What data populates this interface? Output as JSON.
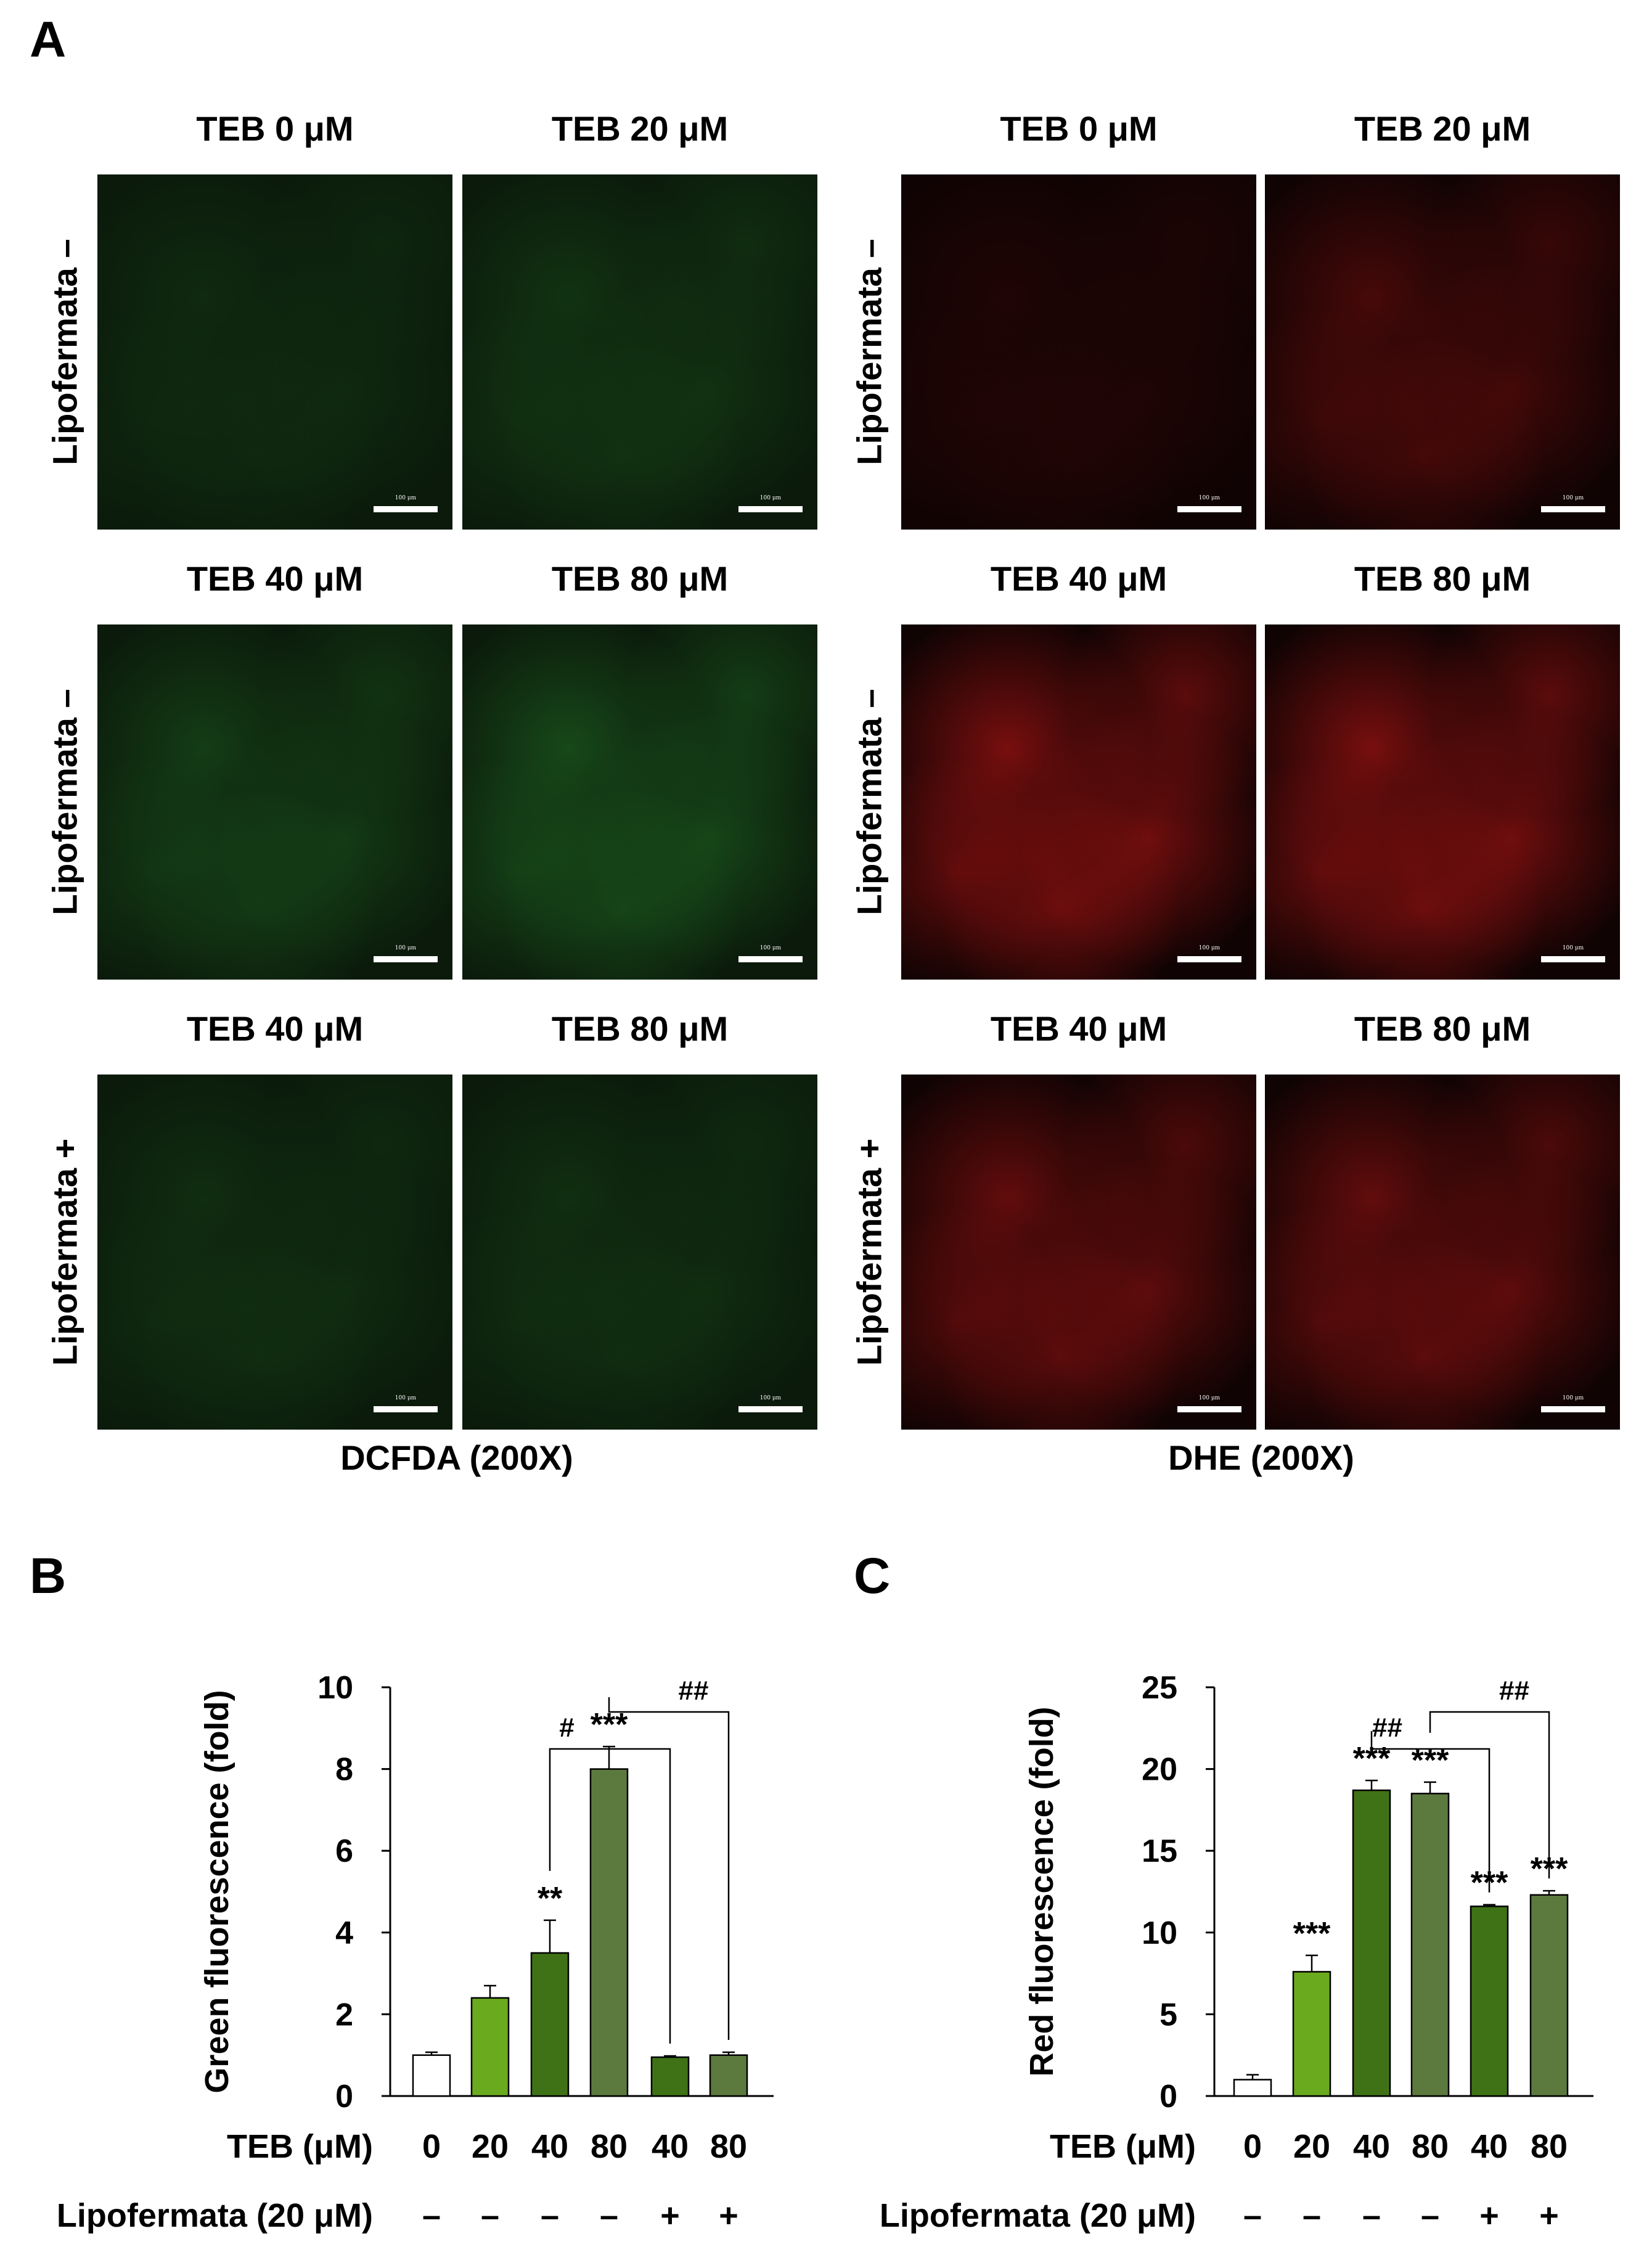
{
  "panels": {
    "a": "A",
    "b": "B",
    "c": "C"
  },
  "microscopy": {
    "left_caption": "DCFDA (200X)",
    "right_caption": "DHE (200X)",
    "scale_bar": "100 μm",
    "rows": [
      {
        "row_label": "Lipofermata –",
        "col_labels": [
          "TEB 0 μM",
          "TEB 20 μM"
        ]
      },
      {
        "row_label": "Lipofermata –",
        "col_labels": [
          "TEB 40 μM",
          "TEB 80 μM"
        ]
      },
      {
        "row_label": "Lipofermata +",
        "col_labels": [
          "TEB 40 μM",
          "TEB 80 μM"
        ]
      }
    ],
    "colors": {
      "green": "#2e9a32",
      "red": "#d81818"
    },
    "intensity": {
      "green": [
        [
          0.25,
          0.4
        ],
        [
          0.55,
          0.75
        ],
        [
          0.3,
          0.32
        ]
      ],
      "red": [
        [
          0.15,
          0.5
        ],
        [
          0.95,
          0.95
        ],
        [
          0.75,
          0.75
        ]
      ]
    }
  },
  "chart_data": [
    {
      "type": "bar",
      "panel": "B",
      "ylabel": "Green fluorescence (fold)",
      "ylim": [
        0,
        10
      ],
      "yticks": [
        0,
        2,
        4,
        6,
        8,
        10
      ],
      "x_row_label": "TEB (μM)",
      "x_row_values": [
        "0",
        "20",
        "40",
        "80",
        "40",
        "80"
      ],
      "cotreat_label": "Lipofermata (20 μM)",
      "cotreat_values": [
        "–",
        "–",
        "–",
        "–",
        "+",
        "+"
      ],
      "values": [
        1.0,
        2.4,
        3.5,
        8.0,
        0.95,
        1.0
      ],
      "errors": [
        0.07,
        0.3,
        0.8,
        0.55,
        0.03,
        0.07
      ],
      "significance": [
        "",
        "",
        "**",
        "***",
        "",
        ""
      ],
      "bar_colors": [
        "#ffffff",
        "#6aaa1e",
        "#3f7216",
        "#5c7a3e",
        "#3f7216",
        "#5c7a3e"
      ],
      "brackets": [
        {
          "label": "#",
          "from": 2,
          "to": 4
        },
        {
          "label": "##",
          "from": 3,
          "to": 5
        }
      ]
    },
    {
      "type": "bar",
      "panel": "C",
      "ylabel": "Red fluorescence (fold)",
      "ylim": [
        0,
        25
      ],
      "yticks": [
        0,
        5,
        10,
        15,
        20,
        25
      ],
      "x_row_label": "TEB (μM)",
      "x_row_values": [
        "0",
        "20",
        "40",
        "80",
        "40",
        "80"
      ],
      "cotreat_label": "Lipofermata (20 μM)",
      "cotreat_values": [
        "–",
        "–",
        "–",
        "–",
        "+",
        "+"
      ],
      "values": [
        1.0,
        7.6,
        18.7,
        18.5,
        11.6,
        12.3
      ],
      "errors": [
        0.3,
        1.0,
        0.6,
        0.7,
        0.1,
        0.25
      ],
      "significance": [
        "",
        "***",
        "***",
        "***",
        "***",
        "***"
      ],
      "bar_colors": [
        "#ffffff",
        "#6aaa1e",
        "#3f7216",
        "#5c7a3e",
        "#3f7216",
        "#5c7a3e"
      ],
      "brackets": [
        {
          "label": "##",
          "from": 2,
          "to": 4
        },
        {
          "label": "##",
          "from": 3,
          "to": 5
        }
      ]
    }
  ]
}
